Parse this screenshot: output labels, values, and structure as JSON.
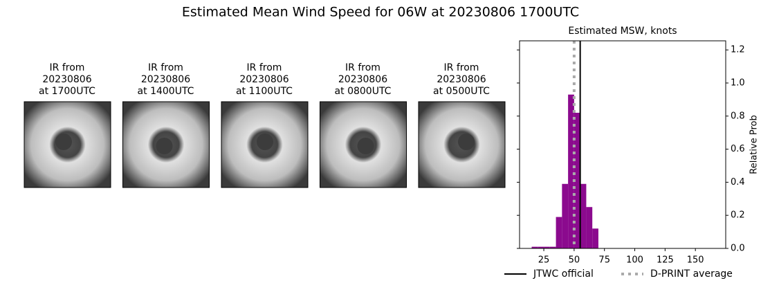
{
  "title": "Estimated Mean Wind Speed for 06W at 20230806 1700UTC",
  "images": [
    {
      "label": [
        "IR from",
        "20230806",
        "at 1700UTC"
      ]
    },
    {
      "label": [
        "IR from",
        "20230806",
        "at 1400UTC"
      ]
    },
    {
      "label": [
        "IR from",
        "20230806",
        "at 1100UTC"
      ]
    },
    {
      "label": [
        "IR from",
        "20230806",
        "at 0800UTC"
      ]
    },
    {
      "label": [
        "IR from",
        "20230806",
        "at 0500UTC"
      ]
    }
  ],
  "chart_data": {
    "type": "histogram",
    "title": "Estimated MSW, knots",
    "y2label": "Relative Prob",
    "bins": [
      15,
      20,
      25,
      30,
      35,
      40,
      45,
      50,
      55,
      60,
      65,
      70
    ],
    "values": [
      0.01,
      0.01,
      0.01,
      0.01,
      0.19,
      0.39,
      0.93,
      0.82,
      0.39,
      0.25,
      0.12
    ],
    "color": "#8b0a8e",
    "xlim": [
      5,
      175
    ],
    "xticks": [
      25,
      50,
      75,
      100,
      125,
      150
    ],
    "y2lim": [
      0,
      1.255
    ],
    "y2ticks": [
      {
        "value": 0,
        "label": "0.0"
      },
      {
        "value": 0.2,
        "label": "0.2"
      },
      {
        "value": 0.4,
        "label": "0.4"
      },
      {
        "value": 0.6,
        "label": "0.6"
      },
      {
        "value": 0.8,
        "label": "0.8"
      },
      {
        "value": 1,
        "label": "1.0"
      },
      {
        "value": 1.2,
        "label": "1.2"
      }
    ],
    "lines": [
      {
        "name": "JTWC official",
        "value": 55,
        "color": "#000000",
        "style": "solid"
      },
      {
        "name": "D-PRINT average",
        "value": 50,
        "color": "#aaaaaa",
        "style": "dotted"
      }
    ]
  }
}
